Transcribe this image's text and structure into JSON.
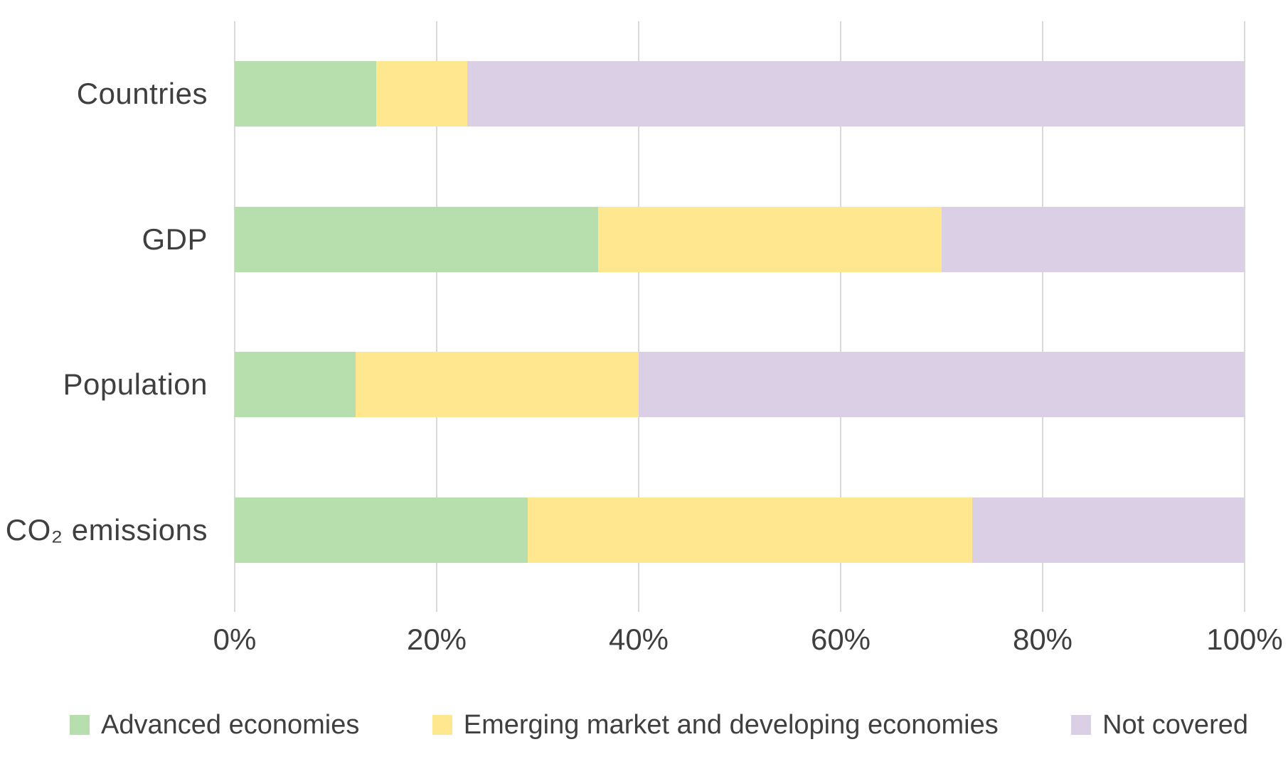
{
  "chart_data": {
    "type": "bar",
    "orientation": "horizontal",
    "stacked": true,
    "unit": "percent",
    "title": "",
    "xlabel": "",
    "ylabel": "",
    "categories": [
      "Countries",
      "GDP",
      "Population",
      "CO₂ emissions"
    ],
    "series": [
      {
        "name": "Advanced economies",
        "color": "#b7dfad",
        "values": [
          14,
          36,
          12,
          29
        ]
      },
      {
        "name": "Emerging market and developing economies",
        "color": "#fee78f",
        "values": [
          9,
          34,
          28,
          44
        ]
      },
      {
        "name": "Not covered",
        "color": "#dbcfe6",
        "values": [
          77,
          30,
          60,
          27
        ]
      }
    ],
    "x_ticks": [
      "0%",
      "20%",
      "40%",
      "60%",
      "80%",
      "100%"
    ],
    "x_tick_values": [
      0,
      20,
      40,
      60,
      80,
      100
    ],
    "xlim": [
      0,
      100
    ],
    "grid": true,
    "legend_position": "bottom"
  },
  "styles": {
    "gridline_color": "#d9d9d9",
    "text_color": "#3f3f3f",
    "background": "#ffffff"
  }
}
